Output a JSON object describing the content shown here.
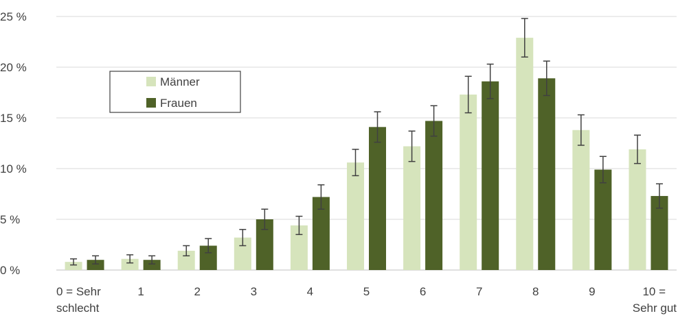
{
  "chart_data": {
    "type": "bar",
    "categories": [
      [
        "0 = Sehr",
        "schlecht"
      ],
      [
        "1"
      ],
      [
        "2"
      ],
      [
        "3"
      ],
      [
        "4"
      ],
      [
        "5"
      ],
      [
        "6"
      ],
      [
        "7"
      ],
      [
        "8"
      ],
      [
        "9"
      ],
      [
        "10 =",
        "Sehr gut"
      ]
    ],
    "series": [
      {
        "name": "Männer",
        "color": "#d6e4bc",
        "values": [
          0.8,
          1.1,
          1.9,
          3.2,
          4.4,
          10.6,
          12.2,
          17.3,
          22.9,
          13.8,
          11.9
        ],
        "error": [
          0.3,
          0.4,
          0.5,
          0.8,
          0.9,
          1.3,
          1.5,
          1.8,
          1.9,
          1.5,
          1.4
        ]
      },
      {
        "name": "Frauen",
        "color": "#4f6228",
        "values": [
          1.0,
          1.0,
          2.4,
          5.0,
          7.2,
          14.1,
          14.7,
          18.6,
          18.9,
          9.9,
          7.3
        ],
        "error": [
          0.4,
          0.4,
          0.7,
          1.0,
          1.2,
          1.5,
          1.5,
          1.7,
          1.7,
          1.3,
          1.2
        ]
      }
    ],
    "yticks": [
      "0 %",
      "5 %",
      "10 %",
      "15 %",
      "20 %",
      "25 %"
    ],
    "ylim": [
      0,
      25
    ],
    "grid": true,
    "legend_position": "upper-left"
  }
}
